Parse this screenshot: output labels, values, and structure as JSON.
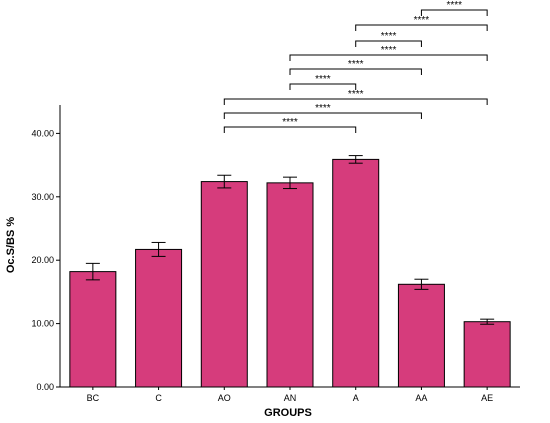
{
  "chart_data": {
    "type": "bar",
    "categories": [
      "BC",
      "C",
      "AO",
      "AN",
      "A",
      "AA",
      "AE"
    ],
    "values": [
      18.2,
      21.7,
      32.4,
      32.2,
      35.9,
      16.2,
      10.3
    ],
    "errors": [
      1.3,
      1.1,
      1.0,
      0.9,
      0.6,
      0.8,
      0.4
    ],
    "xlabel": "GROUPS",
    "ylabel": "Oc.S/BS %",
    "ylim": [
      0,
      44
    ],
    "yticks": [
      "0.00",
      "10.00",
      "20.00",
      "30.00",
      "40.00"
    ],
    "grid": false,
    "bar_color": "#d63c7c",
    "significance": [
      {
        "from": "AO",
        "to": "A",
        "label": "****"
      },
      {
        "from": "AO",
        "to": "AA",
        "label": "****"
      },
      {
        "from": "AO",
        "to": "AE",
        "label": "****"
      },
      {
        "from": "AN",
        "to": "A",
        "label": "****"
      },
      {
        "from": "AN",
        "to": "AA",
        "label": "****"
      },
      {
        "from": "AN",
        "to": "AE",
        "label": "****"
      },
      {
        "from": "A",
        "to": "AA",
        "label": "****"
      },
      {
        "from": "A",
        "to": "AE",
        "label": "****"
      },
      {
        "from": "AA",
        "to": "AE",
        "label": "****"
      }
    ]
  }
}
